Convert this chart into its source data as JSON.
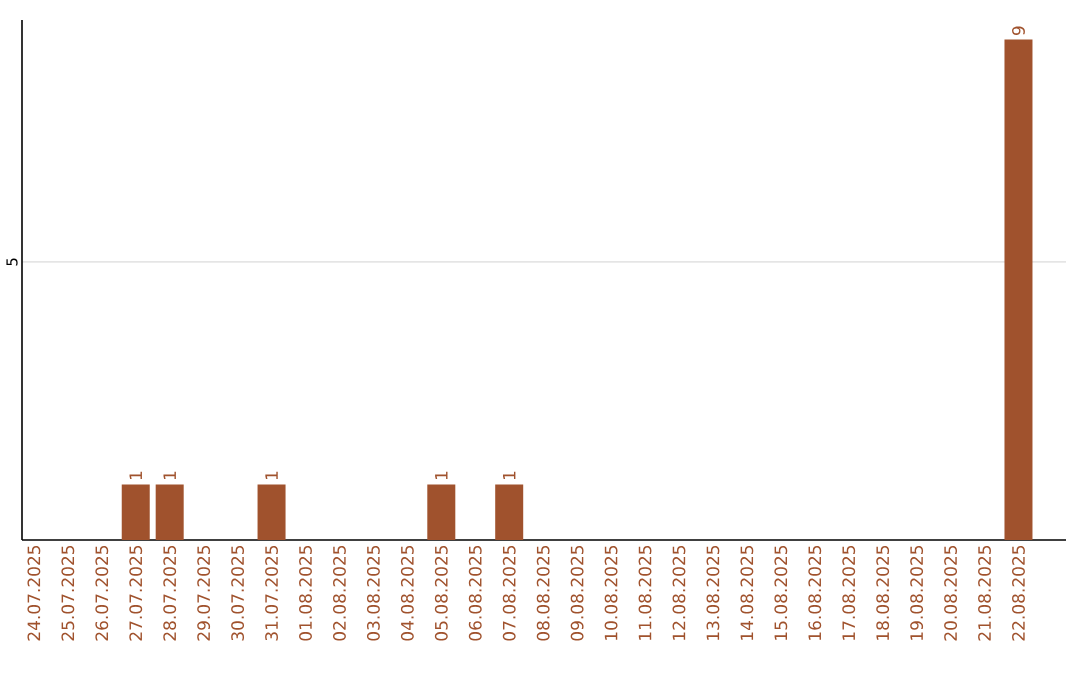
{
  "chart_data": {
    "type": "bar",
    "categories": [
      "24.07.2025",
      "25.07.2025",
      "26.07.2025",
      "27.07.2025",
      "28.07.2025",
      "29.07.2025",
      "30.07.2025",
      "31.07.2025",
      "01.08.2025",
      "02.08.2025",
      "03.08.2025",
      "04.08.2025",
      "05.08.2025",
      "06.08.2025",
      "07.08.2025",
      "08.08.2025",
      "09.08.2025",
      "10.08.2025",
      "11.08.2025",
      "12.08.2025",
      "13.08.2025",
      "14.08.2025",
      "15.08.2025",
      "16.08.2025",
      "17.08.2025",
      "18.08.2025",
      "19.08.2025",
      "20.08.2025",
      "21.08.2025",
      "22.08.2025"
    ],
    "values": [
      0,
      0,
      0,
      1,
      1,
      0,
      0,
      1,
      0,
      0,
      0,
      0,
      1,
      0,
      1,
      0,
      0,
      0,
      0,
      0,
      0,
      0,
      0,
      0,
      0,
      0,
      0,
      0,
      0,
      9
    ],
    "value_labels": [
      null,
      null,
      null,
      "1",
      "1",
      null,
      null,
      "1",
      null,
      null,
      null,
      null,
      "1",
      null,
      "1",
      null,
      null,
      null,
      null,
      null,
      null,
      null,
      null,
      null,
      null,
      null,
      null,
      null,
      null,
      "9"
    ],
    "color": "#a0522d",
    "ylim": [
      0,
      9.35
    ],
    "yticks": [
      5
    ],
    "grid": "y"
  }
}
